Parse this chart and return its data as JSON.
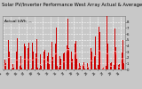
{
  "title": "Solar PV/Inverter Performance West Array Actual & Average Power Output",
  "title_fontsize": 3.8,
  "background_color": "#c8c8c8",
  "plot_bg_color": "#c8c8c8",
  "bar_color": "#cc0000",
  "avg_line_color": "#ffaaaa",
  "grid_color": "#ffffff",
  "ylim": [
    0,
    9
  ],
  "yticks": [
    0,
    1,
    2,
    3,
    4,
    5,
    6,
    7,
    8
  ],
  "ytick_labels": [
    "0",
    "1",
    "2",
    "3",
    "4",
    "5",
    "6",
    "7",
    "8"
  ],
  "legend_label_actual": "Actual kWh  --",
  "legend_fontsize": 3.2,
  "n_days": 31,
  "hours_per_day": 24,
  "seed": 12
}
